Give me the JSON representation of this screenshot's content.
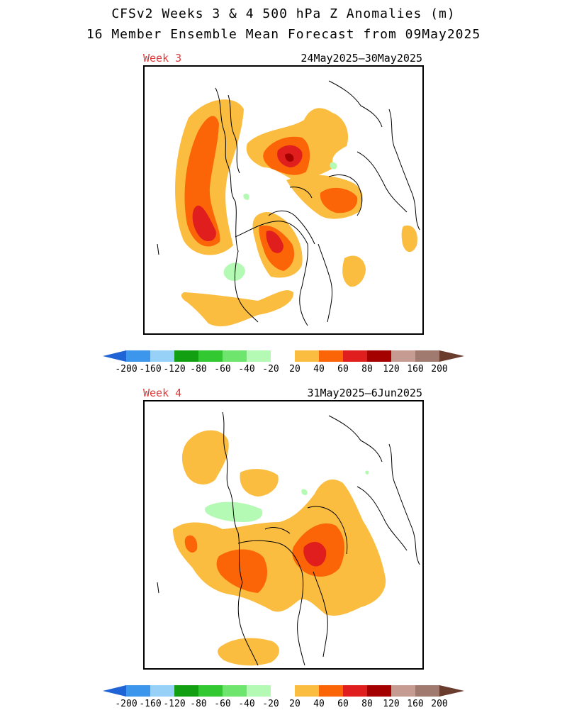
{
  "title": {
    "line1": "CFSv2 Weeks 3 & 4 500 hPa Z Anomalies (m)",
    "line2": "16 Member Ensemble Mean Forecast from 09May2025"
  },
  "panels": [
    {
      "label": "Week 3",
      "dates": "24May2025–30May2025"
    },
    {
      "label": "Week 4",
      "dates": "31May2025–6Jun2025"
    }
  ],
  "colorbar": {
    "ticks": [
      "-200",
      "-160",
      "-120",
      "-80",
      "-60",
      "-40",
      "-20",
      "20",
      "40",
      "60",
      "80",
      "120",
      "160",
      "200"
    ],
    "colors": [
      "#1f64d6",
      "#3b96ec",
      "#98d1f8",
      "#12a012",
      "#32c832",
      "#6ee66e",
      "#b4fab4",
      "#ffffff",
      "#fbbd40",
      "#fb6508",
      "#e01e1e",
      "#a50000",
      "#c59b92",
      "#a0796f",
      "#6a3c2e"
    ]
  }
}
